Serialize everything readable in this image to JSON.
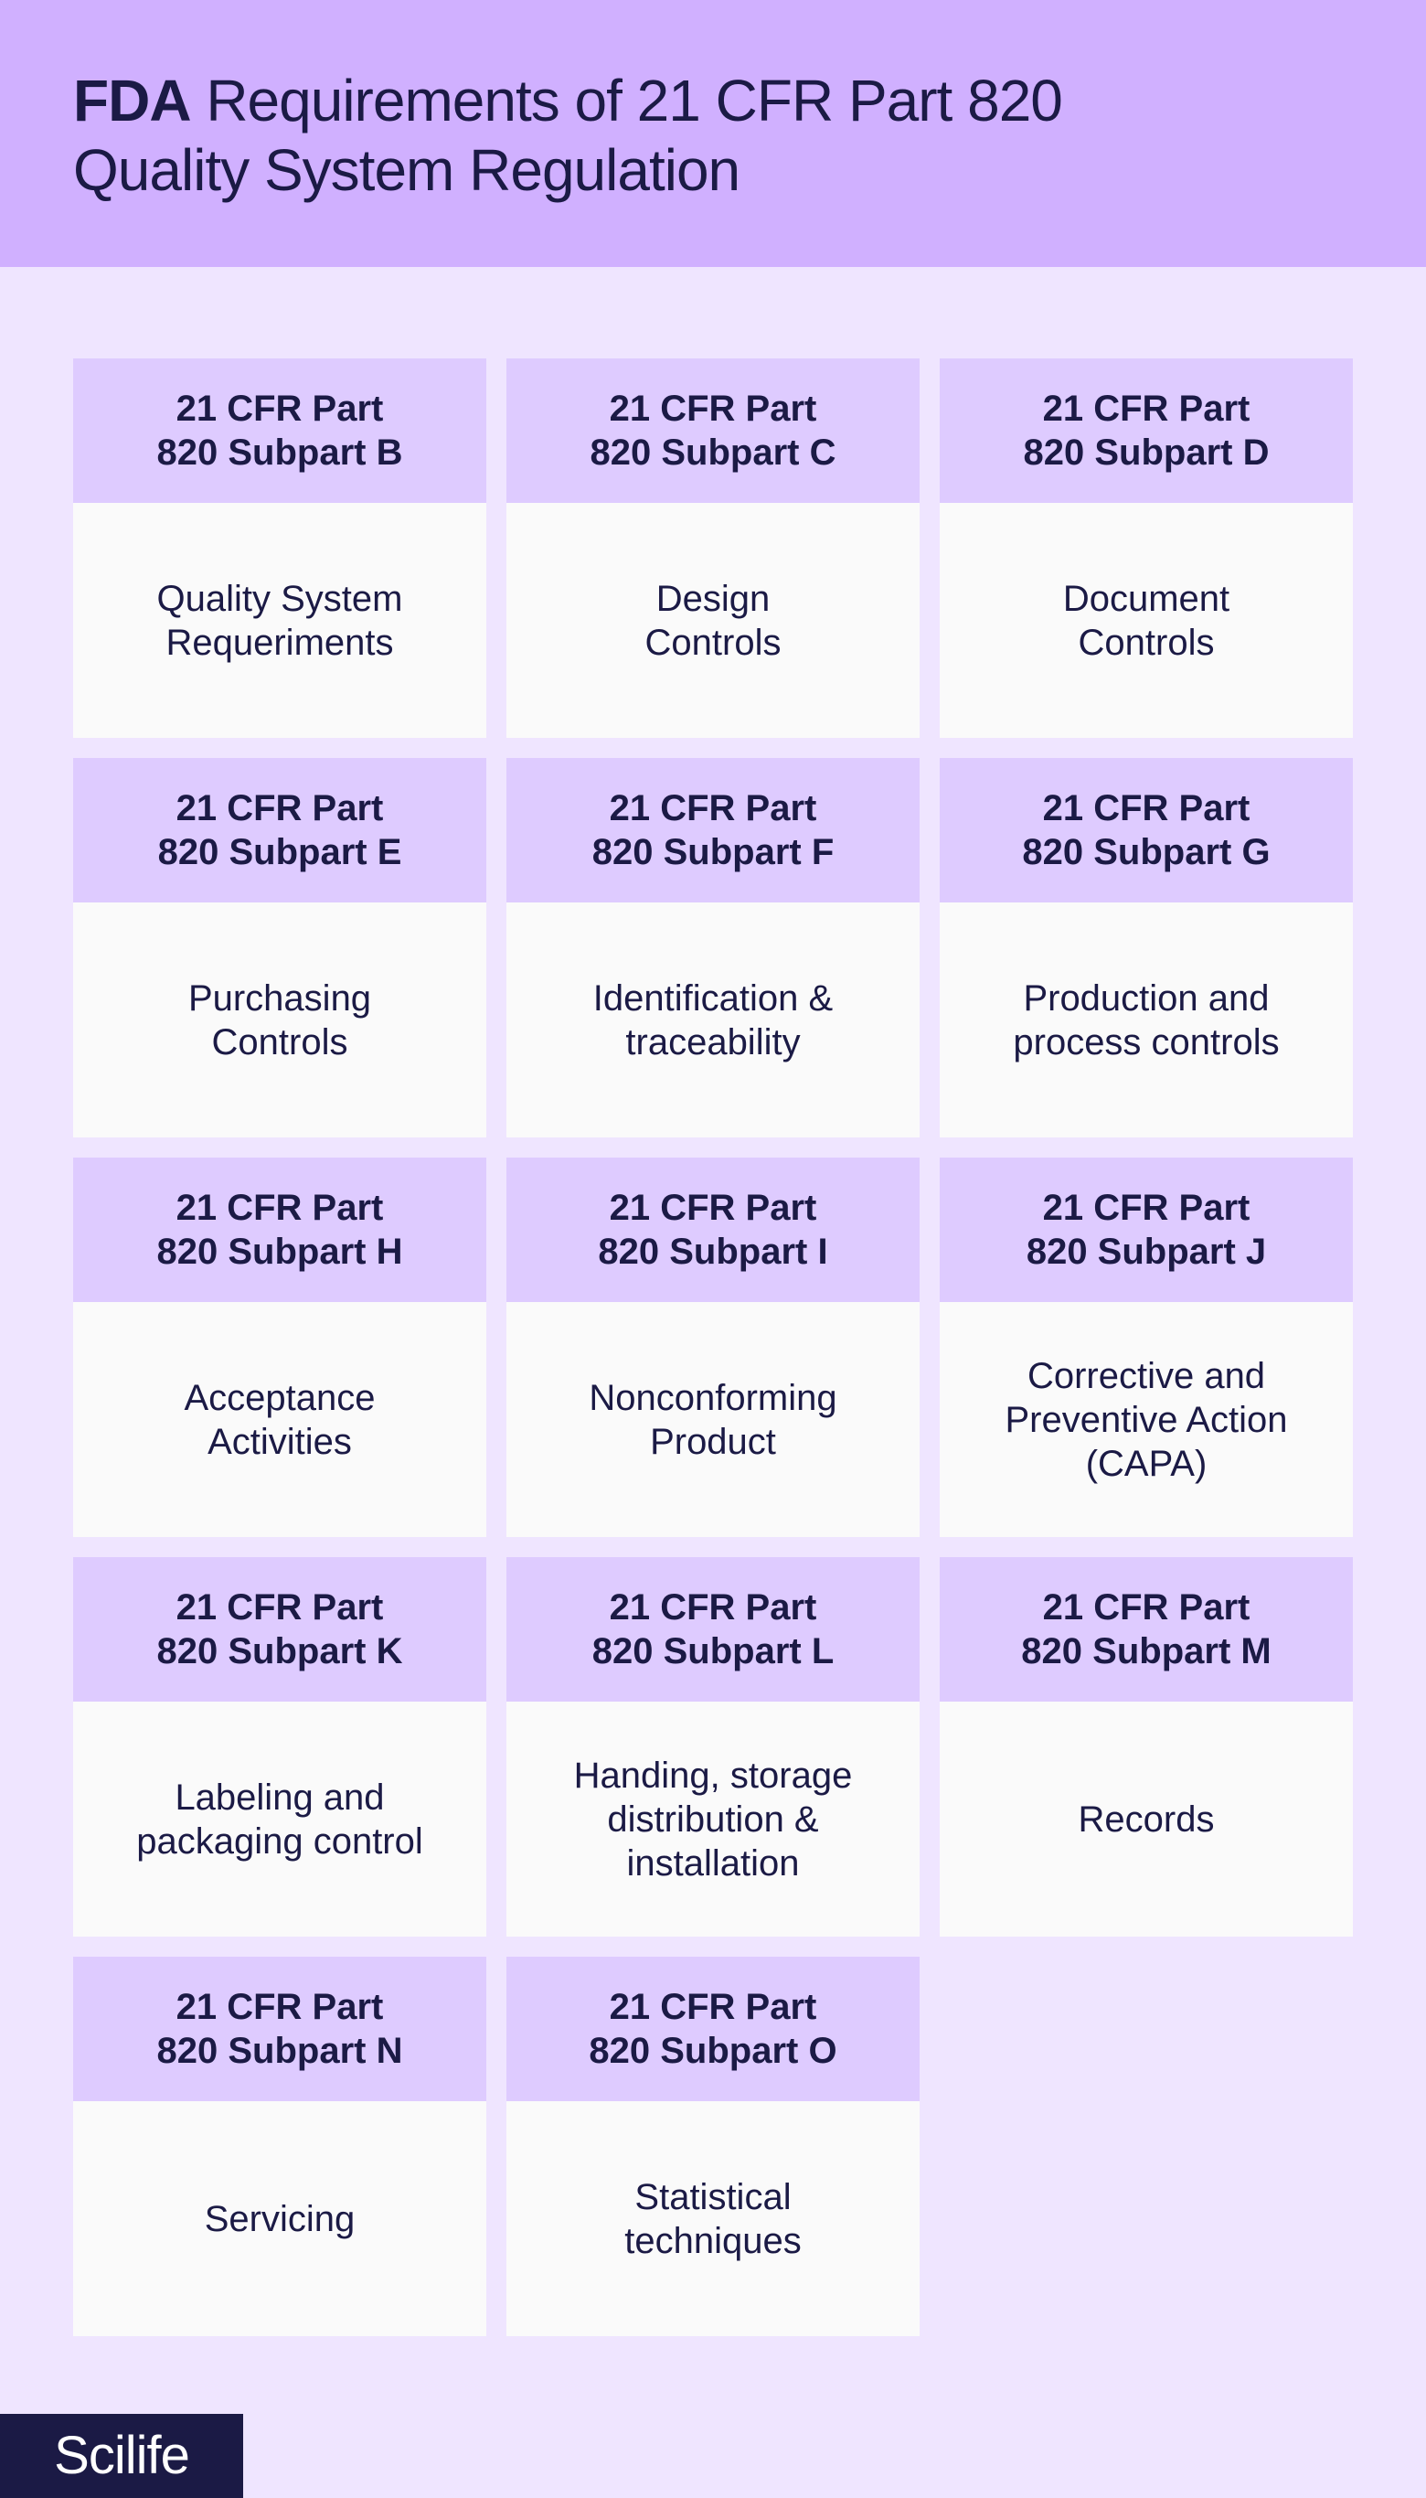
{
  "header": {
    "title_bold": "FDA",
    "title_line1_rest": " Requirements of 21 CFR Part 820",
    "title_line2": "Quality System Regulation"
  },
  "cards": [
    {
      "head": "21 CFR Part\n820 Subpart B",
      "body": "Quality System\nRequeriments"
    },
    {
      "head": "21 CFR Part\n820 Subpart C",
      "body": "Design\nControls"
    },
    {
      "head": "21 CFR Part\n820 Subpart D",
      "body": "Document\nControls"
    },
    {
      "head": "21 CFR Part\n820 Subpart E",
      "body": "Purchasing\nControls"
    },
    {
      "head": "21 CFR Part\n820 Subpart F",
      "body": "Identification &\ntraceability"
    },
    {
      "head": "21 CFR Part\n820 Subpart G",
      "body": "Production and\nprocess controls"
    },
    {
      "head": "21 CFR Part\n820 Subpart H",
      "body": "Acceptance\nActivities"
    },
    {
      "head": "21 CFR Part\n820 Subpart I",
      "body": "Nonconforming\nProduct"
    },
    {
      "head": "21 CFR Part\n820 Subpart J",
      "body": "Corrective and\nPreventive Action\n(CAPA)"
    },
    {
      "head": "21 CFR Part\n820 Subpart K",
      "body": "Labeling and\npackaging control"
    },
    {
      "head": "21 CFR Part\n820 Subpart L",
      "body": "Handing, storage\ndistribution &\ninstallation"
    },
    {
      "head": "21 CFR Part\n820 Subpart M",
      "body": "Records"
    },
    {
      "head": "21 CFR Part\n820 Subpart N",
      "body": "Servicing"
    },
    {
      "head": "21 CFR Part\n820 Subpart O",
      "body": "Statistical\ntechniques"
    }
  ],
  "brand": {
    "label": "Scilife"
  },
  "colors": {
    "header_bg": "#d0b0ff",
    "page_bg": "#efe5ff",
    "card_head_bg": "#decbff",
    "card_body_bg": "#fafafa",
    "text": "#1b1a45",
    "brand_bg": "#1b1a45"
  }
}
